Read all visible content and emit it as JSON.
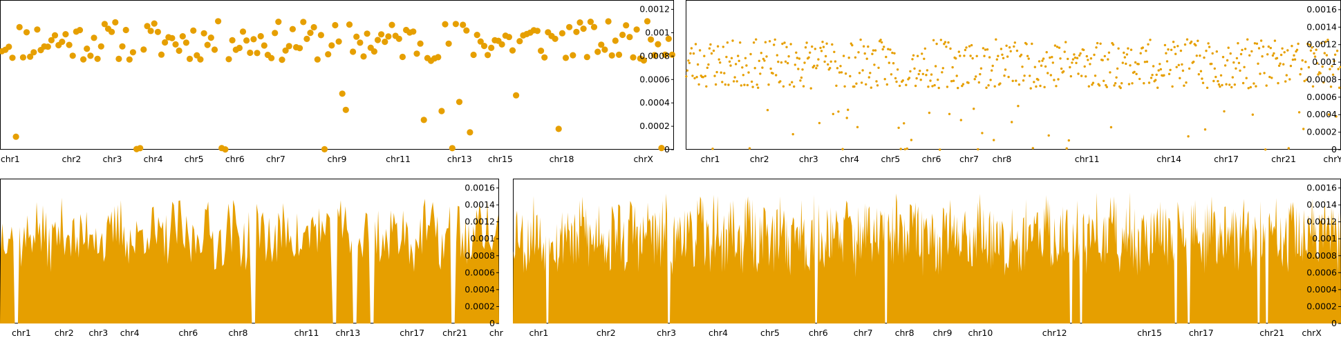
{
  "colors": {
    "accent": "#e69f00",
    "axis": "#000000"
  },
  "chart_data": [
    {
      "type": "scatter",
      "y_axis_side": "right",
      "ylim": [
        0,
        0.00128
      ],
      "yticks": [
        0,
        0.0002,
        0.0004,
        0.0006,
        0.0008,
        0.001,
        0.0012
      ],
      "ytick_labels": [
        "0",
        "0.0002",
        "0.0004",
        "0.0006",
        "0.0008",
        "0.001",
        "0.0012"
      ],
      "xlabels": [
        "chr1",
        "chr2",
        "chr3",
        "chr4",
        "chr5",
        "chr6",
        "chr7",
        "chr9",
        "chr11",
        "chr13",
        "chr15",
        "chr18",
        "chrX"
      ],
      "xlabel_positions": [
        0.5,
        3.5,
        5.5,
        7.5,
        9.5,
        11.5,
        13.5,
        16.5,
        19.5,
        22.5,
        24.5,
        27.5,
        31.5
      ],
      "xlim": [
        0,
        33
      ],
      "marker_size": "large",
      "seed": 11,
      "count": 190,
      "base": 0.00093,
      "spread": 0.00017,
      "zeros": 7,
      "lows": 9
    },
    {
      "type": "scatter",
      "y_axis_side": "right",
      "ylim": [
        0,
        0.00171
      ],
      "yticks": [
        0,
        0.0002,
        0.0004,
        0.0006,
        0.0008,
        0.001,
        0.0012,
        0.0014,
        0.0016
      ],
      "ytick_labels": [
        "0",
        "0.0002",
        "0.0004",
        "0.0006",
        "0.0008",
        "0.001",
        "0.0012",
        "0.0014",
        "0.0016"
      ],
      "xlabels": [
        "chr1",
        "chr2",
        "chr3",
        "chr4",
        "chr5",
        "chr6",
        "chr7",
        "chr8",
        "chr11",
        "chr14",
        "chr17",
        "chr21",
        "chrY"
      ],
      "xlabel_positions": [
        1.5,
        4.5,
        7.5,
        10.0,
        12.5,
        15.0,
        17.3,
        19.3,
        24.5,
        29.5,
        33.0,
        36.5,
        39.5
      ],
      "xlim": [
        0,
        40
      ],
      "marker_size": "small",
      "seed": 23,
      "count": 620,
      "base": 0.00098,
      "spread": 0.00028,
      "zeros": 12,
      "lows": 30
    },
    {
      "type": "area",
      "y_axis_side": "right",
      "ylim": [
        0,
        0.00171
      ],
      "yticks": [
        0,
        0.0002,
        0.0004,
        0.0006,
        0.0008,
        0.001,
        0.0012,
        0.0014,
        0.0016
      ],
      "ytick_labels": [
        "0",
        "0.0002",
        "0.0004",
        "0.0006",
        "0.0008",
        "0.001",
        "0.0012",
        "0.0014",
        "0.0016"
      ],
      "xlabels": [
        "chr1",
        "chr2",
        "chr3",
        "chr4",
        "chr6",
        "chr8",
        "chr11",
        "chr13",
        "chr17",
        "chr21",
        "chr"
      ],
      "xlabel_positions": [
        1.5,
        4.5,
        6.9,
        9.1,
        13.2,
        16.7,
        21.5,
        24.4,
        28.9,
        31.9,
        34.8
      ],
      "xlim": [
        0,
        35
      ],
      "seed": 37,
      "count": 320,
      "base": 0.00105,
      "spread": 0.00035,
      "gaps": [
        0.03,
        0.507,
        0.668,
        0.71,
        0.745,
        0.905
      ]
    },
    {
      "type": "area",
      "y_axis_side": "right",
      "ylim": [
        0,
        0.00171
      ],
      "yticks": [
        0,
        0.0002,
        0.0004,
        0.0006,
        0.0008,
        0.001,
        0.0012,
        0.0014,
        0.0016
      ],
      "ytick_labels": [
        "0",
        "0.0002",
        "0.0004",
        "0.0006",
        "0.0008",
        "0.001",
        "0.0012",
        "0.0014",
        "0.0016"
      ],
      "xlabels": [
        "chr1",
        "chr2",
        "chr3",
        "chr4",
        "chr5",
        "chr6",
        "chr7",
        "chr8",
        "chr9",
        "chr10",
        "chr12",
        "chr15",
        "chr17",
        "chr21",
        "chrX"
      ],
      "xlabel_positions": [
        1.5,
        5.4,
        8.9,
        11.9,
        14.9,
        17.7,
        20.3,
        22.7,
        24.9,
        27.1,
        31.4,
        36.9,
        39.9,
        44.0,
        46.3
      ],
      "xlim": [
        0,
        48
      ],
      "seed": 53,
      "count": 900,
      "base": 0.00105,
      "spread": 0.0004,
      "gaps": [
        0.041,
        0.188,
        0.365,
        0.45,
        0.673,
        0.685,
        0.8,
        0.815,
        0.9,
        0.91
      ]
    }
  ]
}
